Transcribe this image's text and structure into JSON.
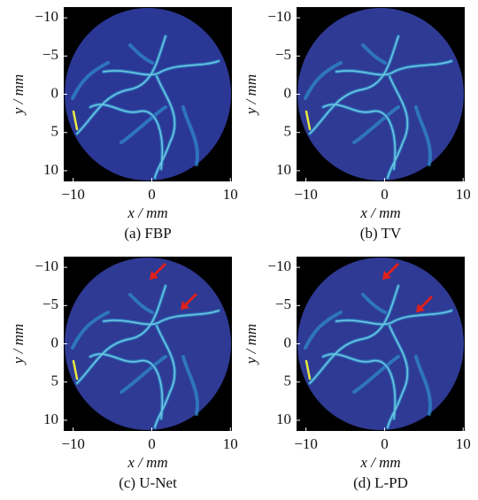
{
  "chart_data": [
    {
      "type": "image",
      "caption": "(a) FBP",
      "xlabel": "x / mm",
      "ylabel": "y / mm",
      "xlim": [
        -11.2,
        10.2
      ],
      "ylim": [
        -11.4,
        11.4
      ],
      "xticks": [
        {
          "value": -10,
          "label": "−10"
        },
        0,
        10
      ],
      "yticks": [
        {
          "value": -10,
          "label": "−10"
        },
        {
          "value": -5,
          "label": "−5"
        },
        0,
        5,
        10
      ]
    },
    {
      "type": "image",
      "caption": "(b) TV",
      "xlabel": "x / mm",
      "ylabel": "y / mm",
      "xlim": [
        -11.2,
        10.2
      ],
      "ylim": [
        -11.4,
        11.4
      ],
      "xticks": [
        {
          "value": -10,
          "label": "−10"
        },
        0,
        10
      ],
      "yticks": [
        {
          "value": -10,
          "label": "−10"
        },
        {
          "value": -5,
          "label": "−5"
        },
        0,
        5,
        10
      ]
    },
    {
      "type": "image",
      "caption": "(c) U-Net",
      "xlabel": "x / mm",
      "ylabel": "y / mm",
      "xlim": [
        -11.2,
        10.2
      ],
      "ylim": [
        -11.4,
        11.4
      ],
      "xticks": [
        {
          "value": -10,
          "label": "−10"
        },
        0,
        10
      ],
      "yticks": [
        {
          "value": -10,
          "label": "−10"
        },
        {
          "value": -5,
          "label": "−5"
        },
        0,
        5,
        10
      ]
    },
    {
      "type": "image",
      "caption": "(d) L-PD",
      "xlabel": "x / mm",
      "ylabel": "y / mm",
      "xlim": [
        -11.2,
        10.2
      ],
      "ylim": [
        -11.4,
        11.4
      ],
      "xticks": [
        {
          "value": -10,
          "label": "−10"
        },
        0,
        10
      ],
      "yticks": [
        {
          "value": -10,
          "label": "−10"
        },
        {
          "value": -5,
          "label": "−5"
        },
        0,
        5,
        10
      ]
    }
  ]
}
